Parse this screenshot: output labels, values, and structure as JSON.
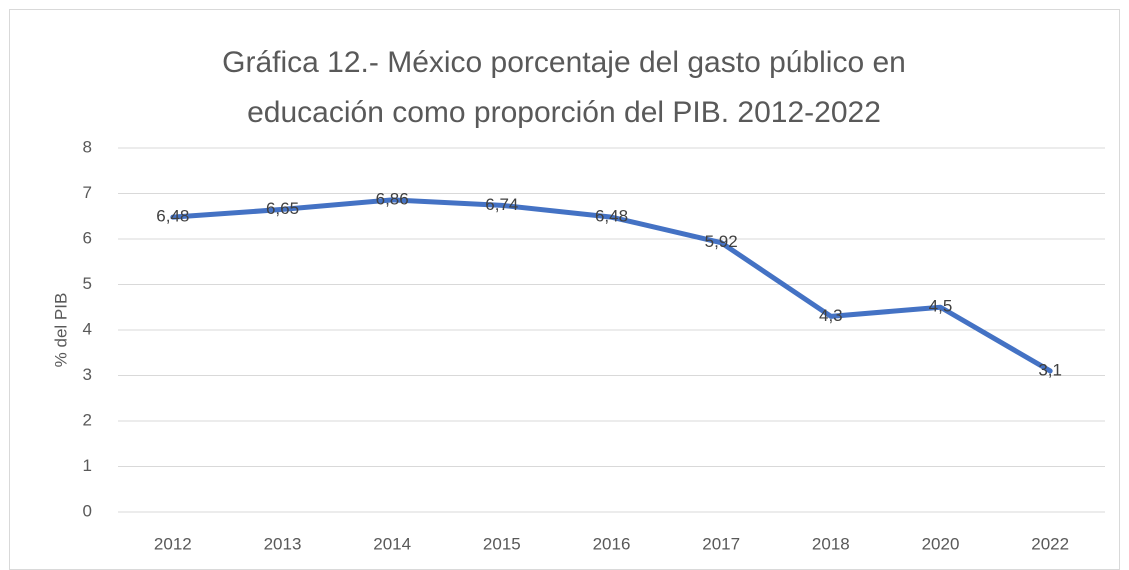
{
  "chart_data": {
    "type": "line",
    "title": "Gráfica 12.- México porcentaje del gasto público en educación como proporción del PIB. 2012-2022",
    "y_label": "% del PIB",
    "categories": [
      "2012",
      "2013",
      "2014",
      "2015",
      "2016",
      "2017",
      "2018",
      "2020",
      "2022"
    ],
    "series": [
      {
        "name": "% del PIB",
        "color": "#4472c4",
        "values": [
          6.48,
          6.65,
          6.86,
          6.74,
          6.48,
          5.92,
          4.3,
          4.5,
          3.1
        ],
        "value_labels": [
          "6,48",
          "6,65",
          "6,86",
          "6,74",
          "6,48",
          "5,92",
          "4,3",
          "4,5",
          "3,1"
        ]
      }
    ],
    "ylim": [
      0,
      8
    ],
    "yticks": [
      0,
      1,
      2,
      3,
      4,
      5,
      6,
      7,
      8
    ],
    "grid": true
  }
}
